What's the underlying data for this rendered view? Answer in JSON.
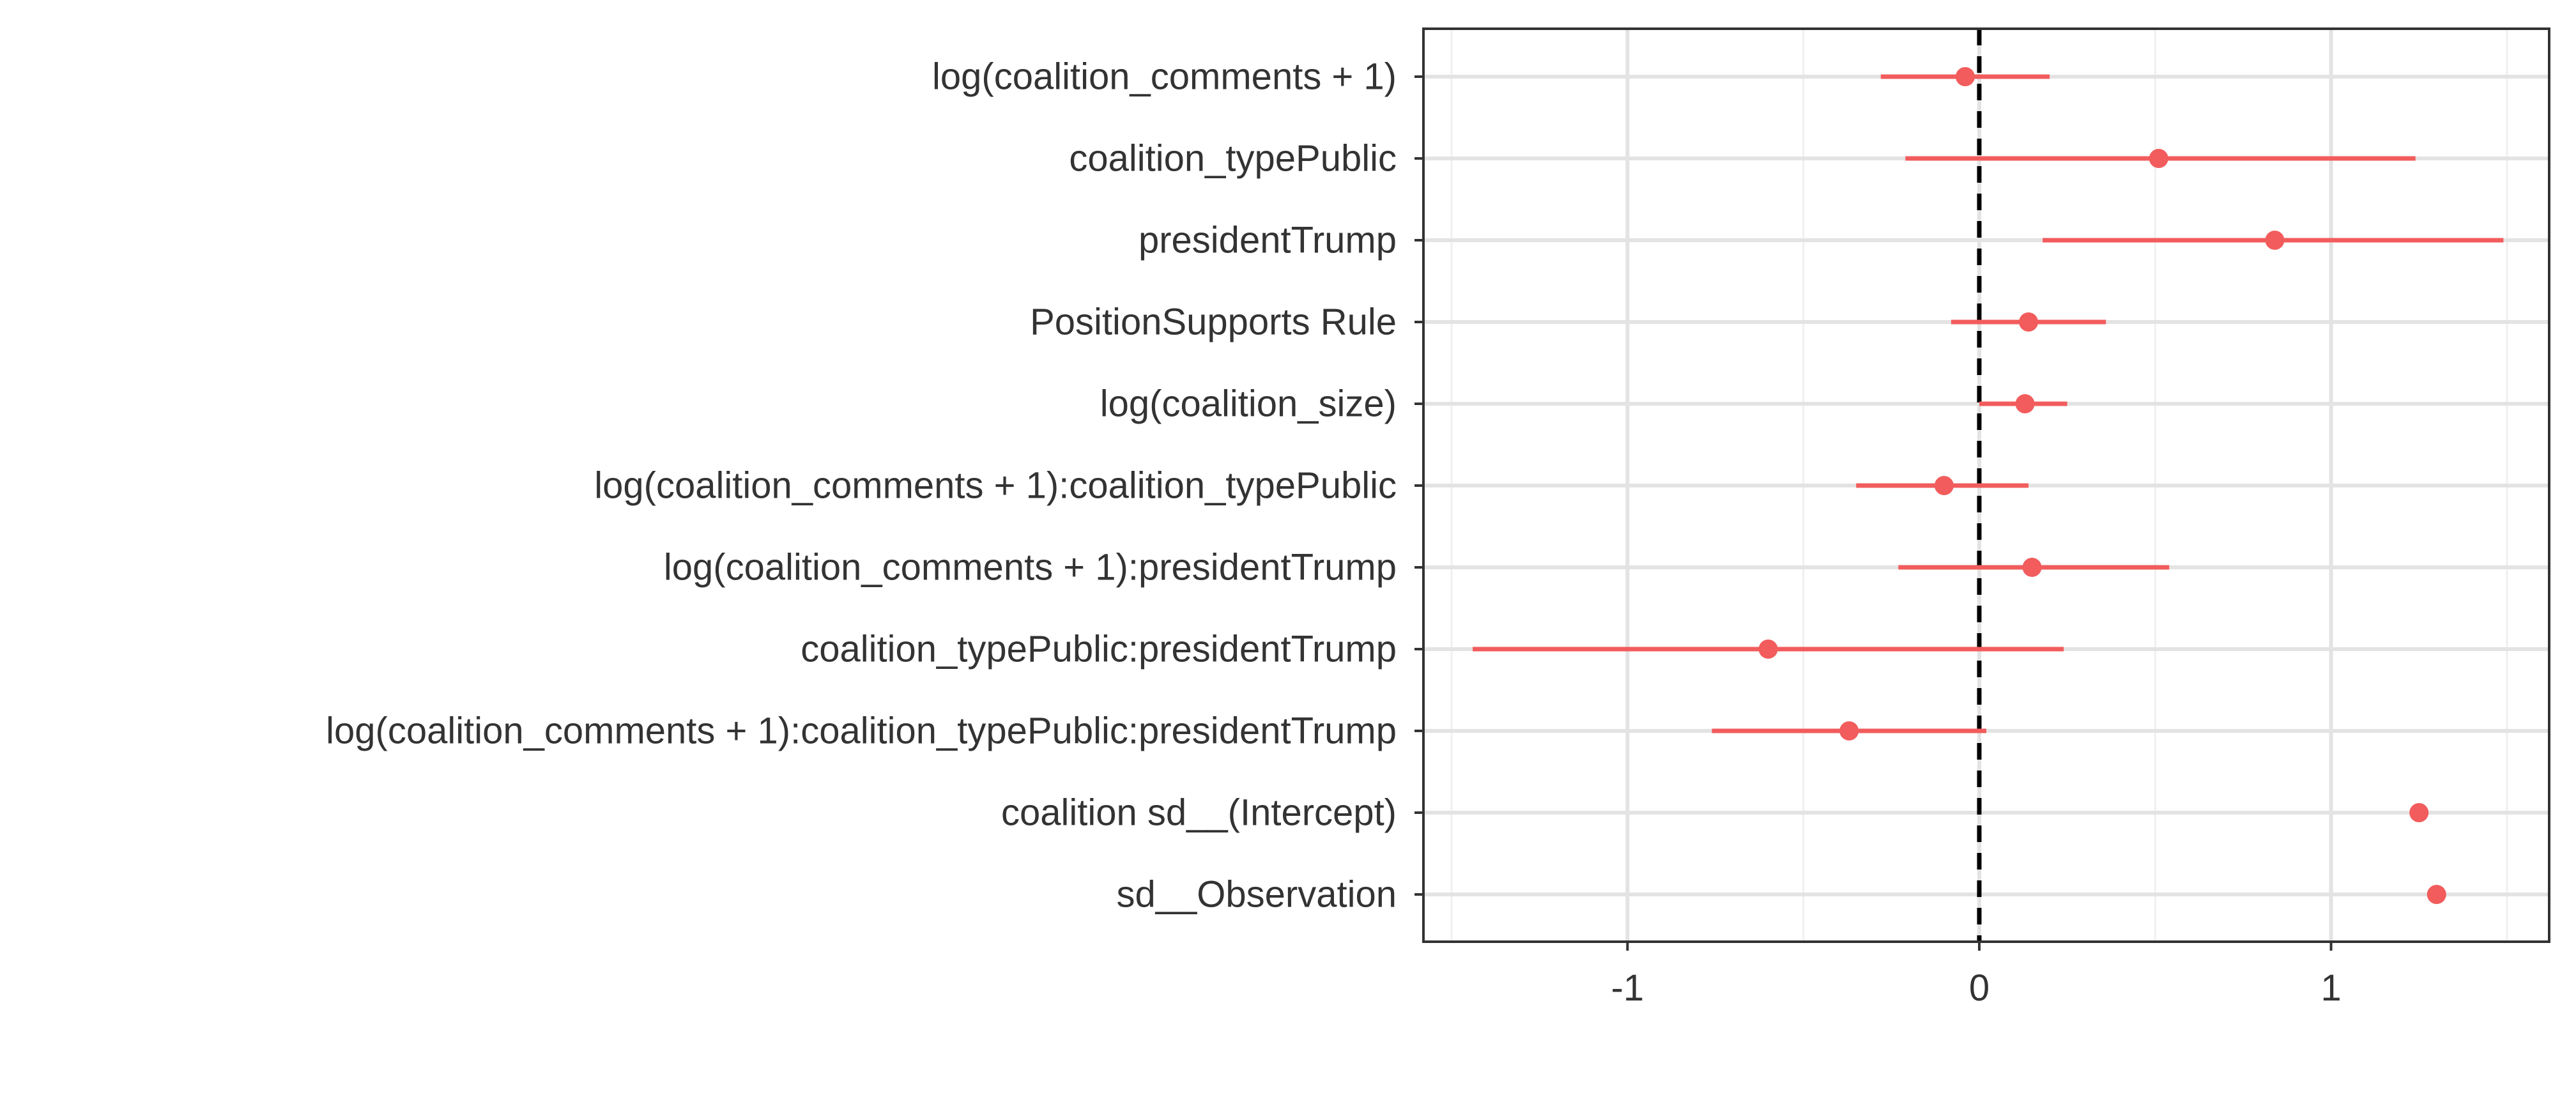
{
  "chart_data": {
    "type": "scatter",
    "subtype": "coefficient-plot-with-intervals",
    "title": "",
    "xlabel": "",
    "ylabel": "",
    "xlim": [
      -1.58,
      1.62
    ],
    "x_ticks": [
      -1,
      0,
      1
    ],
    "x_tick_labels": [
      "-1",
      "0",
      "1"
    ],
    "reference_line": 0,
    "grid": true,
    "legend": "none",
    "colors": {
      "point": "#F25C5C",
      "interval": "#F25C5C",
      "reference": "#000000",
      "grid_major": "#E3E3E3",
      "grid_minor": "#F0F0F0",
      "panel_border": "#333333"
    },
    "terms": [
      {
        "label": "log(coalition_comments + 1)",
        "estimate": -0.04,
        "lower": -0.28,
        "upper": 0.2
      },
      {
        "label": "coalition_typePublic",
        "estimate": 0.51,
        "lower": -0.21,
        "upper": 1.24
      },
      {
        "label": "presidentTrump",
        "estimate": 0.84,
        "lower": 0.18,
        "upper": 1.49
      },
      {
        "label": "PositionSupports Rule",
        "estimate": 0.14,
        "lower": -0.08,
        "upper": 0.36
      },
      {
        "label": "log(coalition_size)",
        "estimate": 0.13,
        "lower": 0.0,
        "upper": 0.25
      },
      {
        "label": "log(coalition_comments + 1):coalition_typePublic",
        "estimate": -0.1,
        "lower": -0.35,
        "upper": 0.14
      },
      {
        "label": "log(coalition_comments + 1):presidentTrump",
        "estimate": 0.15,
        "lower": -0.23,
        "upper": 0.54
      },
      {
        "label": "coalition_typePublic:presidentTrump",
        "estimate": -0.6,
        "lower": -1.44,
        "upper": 0.24
      },
      {
        "label": "log(coalition_comments + 1):coalition_typePublic:presidentTrump",
        "estimate": -0.37,
        "lower": -0.76,
        "upper": 0.02
      },
      {
        "label": "coalition sd__(Intercept)",
        "estimate": 1.25,
        "lower": null,
        "upper": null
      },
      {
        "label": "sd__Observation",
        "estimate": 1.3,
        "lower": null,
        "upper": null
      }
    ]
  }
}
